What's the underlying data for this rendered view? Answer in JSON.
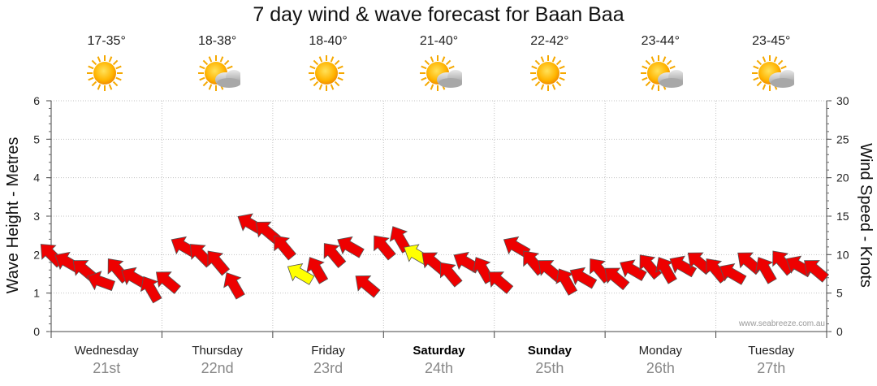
{
  "title": "7 day wind & wave forecast for Baan Baa",
  "days": [
    {
      "name": "Wednesday",
      "date": "21st",
      "temp": "17-35°",
      "icon": "sunny-icon",
      "bold": false
    },
    {
      "name": "Thursday",
      "date": "22nd",
      "temp": "18-38°",
      "icon": "partly-cloudy-icon",
      "bold": false
    },
    {
      "name": "Friday",
      "date": "23rd",
      "temp": "18-40°",
      "icon": "sunny-icon",
      "bold": false
    },
    {
      "name": "Saturday",
      "date": "24th",
      "temp": "21-40°",
      "icon": "partly-cloudy-icon",
      "bold": true
    },
    {
      "name": "Sunday",
      "date": "25th",
      "temp": "22-42°",
      "icon": "sunny-icon",
      "bold": true
    },
    {
      "name": "Monday",
      "date": "26th",
      "temp": "23-44°",
      "icon": "partly-cloudy-icon",
      "bold": false
    },
    {
      "name": "Tuesday",
      "date": "27th",
      "temp": "23-45°",
      "icon": "partly-cloudy-icon",
      "bold": false
    }
  ],
  "credit": "www.seabreeze.com.au",
  "colors": {
    "wind_arrow": "#ee0000",
    "strong_arrow": "#ffff00",
    "grid": "#bbbbbb",
    "date_text": "#888888"
  },
  "chart_data": {
    "type": "line",
    "title": "7 day wind & wave forecast for Baan Baa",
    "ylabel": "Wave Height - Metres",
    "y2label": "Wind Speed - Knots",
    "ylim": [
      0,
      6
    ],
    "y2lim": [
      0,
      30
    ],
    "yticks": [
      0,
      1,
      2,
      3,
      4,
      5,
      6
    ],
    "y2ticks": [
      0,
      5,
      10,
      15,
      20,
      25,
      30
    ],
    "grid": true,
    "series": [
      {
        "name": "Wind Speed - Knots",
        "unit": "knots",
        "x_days": [
          0.0,
          0.15,
          0.3,
          0.45,
          0.6,
          0.75,
          0.9,
          1.05,
          1.2,
          1.35,
          1.5,
          1.65,
          1.8,
          1.95,
          2.1,
          2.25,
          2.4,
          2.55,
          2.7,
          2.85,
          3.0,
          3.15,
          3.3,
          3.45,
          3.6,
          3.75,
          3.9,
          4.05,
          4.2,
          4.35,
          4.5,
          4.65,
          4.8,
          4.95,
          5.1,
          5.25,
          5.4,
          5.55,
          5.7,
          5.85,
          6.0,
          6.15,
          6.3,
          6.45,
          6.6,
          6.75,
          6.9
        ],
        "values": [
          10,
          9,
          8,
          6.5,
          8,
          7,
          5.5,
          6.5,
          11,
          10,
          9,
          6,
          14,
          13,
          11,
          7.5,
          8,
          10,
          11,
          6,
          11,
          12,
          10,
          9,
          7.5,
          9,
          8,
          6.5,
          11,
          9,
          8,
          6.5,
          7,
          8,
          7,
          8,
          8.5,
          8,
          8.5,
          9,
          8,
          7.5,
          9,
          8,
          9,
          8.5,
          8
        ],
        "directions_deg": [
          315,
          300,
          310,
          290,
          320,
          300,
          330,
          310,
          300,
          315,
          320,
          330,
          300,
          310,
          320,
          300,
          330,
          320,
          300,
          310,
          320,
          330,
          300,
          310,
          320,
          300,
          330,
          310,
          300,
          320,
          310,
          330,
          300,
          320,
          310,
          300,
          320,
          330,
          300,
          310,
          320,
          300,
          310,
          330,
          320,
          300,
          310
        ],
        "strong_index": [
          15,
          22
        ]
      }
    ]
  }
}
